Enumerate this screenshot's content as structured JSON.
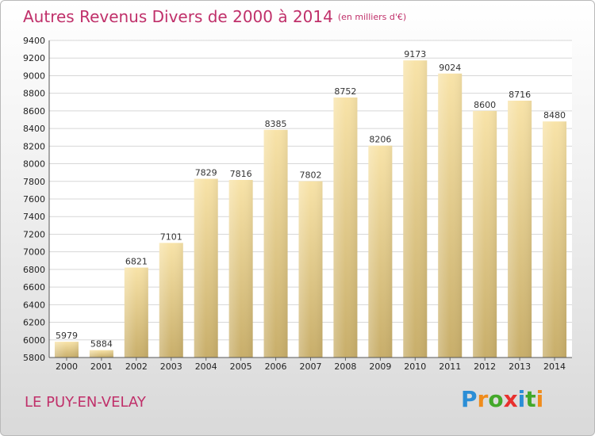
{
  "header": {
    "title": "Autres Revenus Divers de 2000 à 2014",
    "unit": "(en milliers d'€)"
  },
  "footer": {
    "city": "LE PUY-EN-VELAY",
    "logo": "Proxiti"
  },
  "colors": {
    "title": "#c0306a",
    "bar_light": "#f8e3a8",
    "bar_dark": "#c8ae6a",
    "grid": "#d7d7d7"
  },
  "chart_data": {
    "type": "bar",
    "categories": [
      "2000",
      "2001",
      "2002",
      "2003",
      "2004",
      "2005",
      "2006",
      "2007",
      "2008",
      "2009",
      "2010",
      "2011",
      "2012",
      "2013",
      "2014"
    ],
    "values": [
      5979,
      5884,
      6821,
      7101,
      7829,
      7816,
      8385,
      7802,
      8752,
      8206,
      9173,
      9024,
      8600,
      8716,
      8480
    ],
    "title": "Autres Revenus Divers de 2000 à 2014",
    "xlabel": "",
    "ylabel": "",
    "ylim": [
      5800,
      9400
    ],
    "yticks": [
      5800,
      6000,
      6200,
      6400,
      6600,
      6800,
      7000,
      7200,
      7400,
      7600,
      7800,
      8000,
      8200,
      8400,
      8600,
      8800,
      9000,
      9200,
      9400
    ],
    "grid": true,
    "data_labels": true
  }
}
